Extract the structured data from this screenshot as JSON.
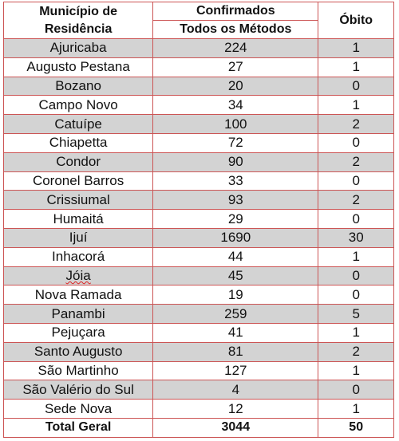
{
  "header": {
    "municipio": [
      "Município de",
      "Residência"
    ],
    "confirmados": [
      "Confirmados",
      "Todos os Métodos"
    ],
    "obito": "Óbito"
  },
  "rows": [
    [
      "Ajuricaba",
      224,
      1
    ],
    [
      "Augusto Pestana",
      27,
      1
    ],
    [
      "Bozano",
      20,
      0
    ],
    [
      "Campo Novo",
      34,
      1
    ],
    [
      "Catuípe",
      100,
      2
    ],
    [
      "Chiapetta",
      72,
      0
    ],
    [
      "Condor",
      90,
      2
    ],
    [
      "Coronel Barros",
      33,
      0
    ],
    [
      "Crissiumal",
      93,
      2
    ],
    [
      "Humaitá",
      29,
      0
    ],
    [
      "Ijuí",
      1690,
      30
    ],
    [
      "Inhacorá",
      44,
      1
    ],
    [
      "Jóia",
      45,
      0
    ],
    [
      "Nova Ramada",
      19,
      0
    ],
    [
      "Panambi",
      259,
      5
    ],
    [
      "Pejuçara",
      41,
      1
    ],
    [
      "Santo Augusto",
      81,
      2
    ],
    [
      "São Martinho",
      127,
      1
    ],
    [
      "São Valério do Sul",
      4,
      0
    ],
    [
      "Sede Nova",
      12,
      1
    ]
  ],
  "total": [
    "Total Geral",
    3044,
    50
  ]
}
